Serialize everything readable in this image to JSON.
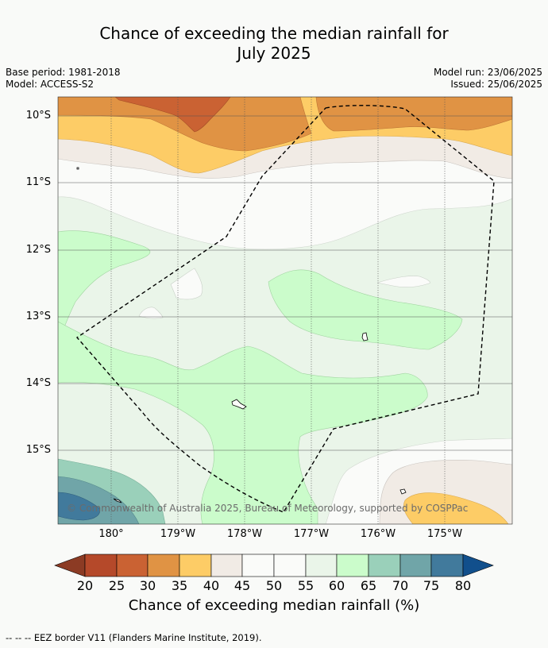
{
  "header": {
    "title_line1": "Chance of exceeding the median rainfall for",
    "title_line2": "July 2025",
    "base_period": "Base period: 1981-2018",
    "model": "Model: ACCESS-S2",
    "model_run": "Model run: 23/06/2025",
    "issued": "Issued: 25/06/2025"
  },
  "map": {
    "lat_labels": [
      "10°S",
      "11°S",
      "12°S",
      "13°S",
      "14°S",
      "15°S"
    ],
    "lon_labels": [
      "180°",
      "179°W",
      "178°W",
      "177°W",
      "176°W",
      "175°W"
    ],
    "copyright": "© Commonwealth of Australia 2025, Bureau of Meteorology, supported by COSPPac"
  },
  "colorbar": {
    "ticks": [
      "20",
      "25",
      "30",
      "35",
      "40",
      "45",
      "50",
      "55",
      "60",
      "65",
      "70",
      "75",
      "80"
    ],
    "colors": [
      "#8c3b24",
      "#b5492a",
      "#ca6233",
      "#e09344",
      "#fdcc66",
      "#f1ebe5",
      "#fafbf9",
      "#fafbf9",
      "#eaf5e9",
      "#cbfccb",
      "#9ad0ba",
      "#70a5a8",
      "#417a9c",
      "#114f8c"
    ],
    "label": "Chance of exceeding median rainfall (%)"
  },
  "footnote": "--  --  -- EEZ border V11 (Flanders Marine Institute, 2019)."
}
